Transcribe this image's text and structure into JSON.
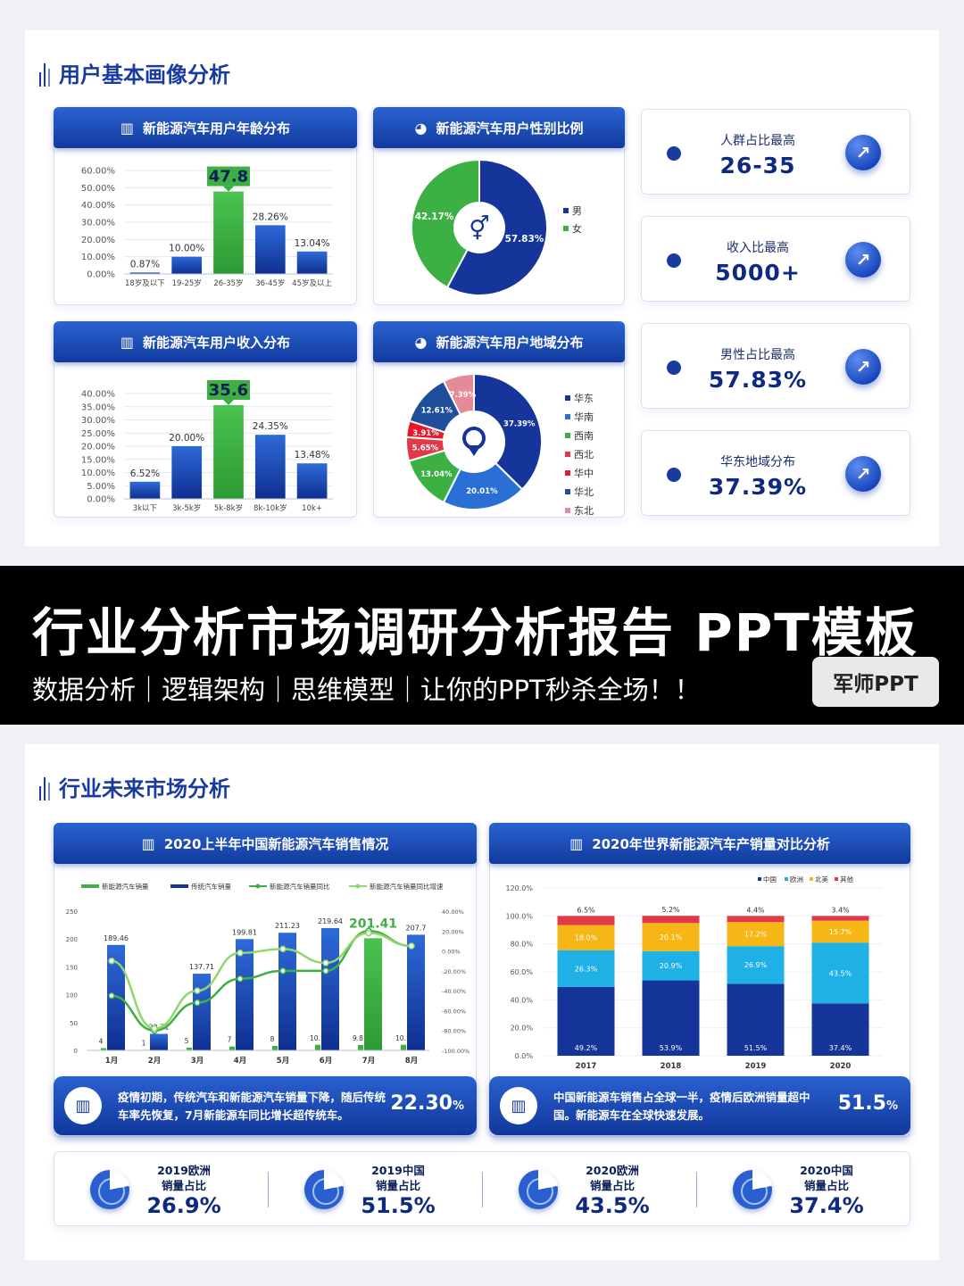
{
  "slide1": {
    "section_title": "用户基本画像分析",
    "age_chart": {
      "title": "新能源汽车用户年龄分布"
    },
    "gender_chart": {
      "title": "新能源汽车用户性别比例"
    },
    "income_chart": {
      "title": "新能源汽车用户收入分布"
    },
    "region_chart": {
      "title": "新能源汽车用户地域分布"
    },
    "stats": [
      {
        "label": "人群占比最高",
        "value": "26-35"
      },
      {
        "label": "收入比最高",
        "value": "5000+"
      },
      {
        "label": "男性占比最高",
        "value": "57.83%"
      },
      {
        "label": "华东地域分布",
        "value": "37.39%"
      }
    ]
  },
  "banner": {
    "title": "行业分析市场调研分析报告  PPT模板",
    "subtitle": "数据分析｜逻辑架构｜思维模型｜让你的PPT秒杀全场！！",
    "brand": "军师PPT"
  },
  "slide2": {
    "section_title": "行业未来市场分析",
    "sales_chart": {
      "title": "2020上半年中国新能源汽车销售情况"
    },
    "world_chart": {
      "title": "2020年世界新能源汽车产销量对比分析"
    },
    "notes": [
      {
        "text": "疫情初期，传统汽车和新能源汽车销量下降，随后传统车率先恢复，7月新能源车同比增长超传统车。",
        "value": "22.30",
        "unit": "%"
      },
      {
        "text": "中国新能源车销售占全球一半，疫情后欧洲销量超中国。新能源车在全球快速发展。",
        "value": "51.5",
        "unit": "%"
      }
    ],
    "shares": [
      {
        "label1": "2019欧洲",
        "label2": "销量占比",
        "value": "26.9%"
      },
      {
        "label1": "2019中国",
        "label2": "销量占比",
        "value": "51.5%"
      },
      {
        "label1": "2020欧洲",
        "label2": "销量占比",
        "value": "43.5%"
      },
      {
        "label1": "2020中国",
        "label2": "销量占比",
        "value": "37.4%"
      }
    ]
  },
  "colors": {
    "navy": "#1a3b9e",
    "blue": "#2a63d0",
    "green": "#3cb043",
    "red": "#e03a4a",
    "yellow": "#f6b616",
    "cyan": "#1fb0e6",
    "pink": "#e68a9a"
  },
  "chart_data": [
    {
      "type": "bar",
      "title": "新能源汽车用户年龄分布",
      "categories": [
        "18岁及以下",
        "19-25岁",
        "26-35岁",
        "36-45岁",
        "45岁及以上"
      ],
      "values": [
        0.87,
        10.0,
        47.8,
        28.26,
        13.04
      ],
      "value_labels": [
        "0.87%",
        "10.00%",
        "47.8",
        "28.26%",
        "13.04%"
      ],
      "y_ticks": [
        "0.00%",
        "10.00%",
        "20.00%",
        "30.00%",
        "40.00%",
        "50.00%",
        "60.00%"
      ],
      "ylim": [
        0,
        60
      ],
      "highlight_index": 2
    },
    {
      "type": "pie",
      "title": "新能源汽车用户性别比例",
      "labels": [
        "男",
        "女"
      ],
      "values": [
        57.83,
        42.17
      ],
      "value_labels": [
        "57.83%",
        "42.17%"
      ]
    },
    {
      "type": "bar",
      "title": "新能源汽车用户收入分布",
      "categories": [
        "3k以下",
        "3k-5k岁",
        "5k-8k岁",
        "8k-10k岁",
        "10k+"
      ],
      "values": [
        6.52,
        20.0,
        35.6,
        24.35,
        13.48
      ],
      "value_labels": [
        "6.52%",
        "20.00%",
        "35.6",
        "24.35%",
        "13.48%"
      ],
      "y_ticks": [
        "0.00%",
        "5.00%",
        "10.00%",
        "15.00%",
        "20.00%",
        "25.00%",
        "30.00%",
        "35.00%",
        "40.00%"
      ],
      "ylim": [
        0,
        40
      ],
      "highlight_index": 2
    },
    {
      "type": "pie",
      "title": "新能源汽车用户地域分布",
      "labels": [
        "华东",
        "华南",
        "西南",
        "西北",
        "华中",
        "华北",
        "东北"
      ],
      "values": [
        37.39,
        20.01,
        13.04,
        5.65,
        3.91,
        12.61,
        7.39
      ],
      "value_labels": [
        "37.39%",
        "20.01%",
        "13.04%",
        "5.65%",
        "3.91%",
        "12.61%",
        "7.39%"
      ]
    },
    {
      "type": "bar",
      "title": "2020上半年中国新能源汽车销售情况",
      "categories": [
        "1月",
        "2月",
        "3月",
        "4月",
        "5月",
        "6月",
        "7月",
        "8月"
      ],
      "series": [
        {
          "name": "新能源汽车销量",
          "values": [
            4,
            1,
            5,
            7,
            8,
            10,
            9.8,
            10
          ]
        },
        {
          "name": "传统汽车销量",
          "values": [
            189.46,
            29.71,
            137.71,
            199.81,
            211.23,
            219.64,
            null,
            207.7
          ]
        },
        {
          "name": "新能源汽车销量同比",
          "values": [
            -45,
            -80,
            -52,
            -28,
            -20,
            -20,
            20,
            5
          ]
        },
        {
          "name": "新能源汽车销量同比增速",
          "values": [
            -10,
            -78,
            -40,
            -2,
            2,
            -12,
            18,
            5
          ]
        }
      ],
      "green_bar": {
        "category": "7月",
        "value": 201.41,
        "label": "201.41"
      },
      "value_labels": [
        "189.46",
        "29.71",
        "137.71",
        "199.81",
        "211.23",
        "219.64",
        "201.41",
        "207.7"
      ],
      "small_labels": [
        "4",
        "1",
        "5",
        "7",
        "8",
        "10.",
        "9.8",
        "10."
      ],
      "y_ticks": [
        "0",
        "50",
        "100",
        "150",
        "200",
        "250"
      ],
      "y2_ticks": [
        "-100.00%",
        "-80.00%",
        "-60.00%",
        "-40.00%",
        "-20.00%",
        "0.00%",
        "20.00%",
        "40.00%"
      ],
      "ylim": [
        0,
        250
      ],
      "y2lim": [
        -100,
        40
      ]
    },
    {
      "type": "bar",
      "stacked": true,
      "title": "2020年世界新能源汽车产销量对比分析",
      "categories": [
        "2017",
        "2018",
        "2019",
        "2020"
      ],
      "series": [
        {
          "name": "中国",
          "values": [
            49.2,
            53.9,
            51.5,
            37.4
          ],
          "labels": [
            "49.2%",
            "53.9%",
            "51.5%",
            "37.4%"
          ]
        },
        {
          "name": "欧洲",
          "values": [
            26.3,
            20.9,
            26.9,
            43.5
          ],
          "labels": [
            "26.3%",
            "20.9%",
            "26.9%",
            "43.5%"
          ]
        },
        {
          "name": "北美",
          "values": [
            18.0,
            20.1,
            17.2,
            15.7
          ],
          "labels": [
            "18.0%",
            "20.1%",
            "17.2%",
            "15.7%"
          ]
        },
        {
          "name": "其他",
          "values": [
            6.5,
            5.2,
            4.4,
            3.4
          ],
          "labels": [
            "6.5%",
            "5.2%",
            "4.4%",
            "3.4%"
          ]
        }
      ],
      "y_ticks": [
        "0.0%",
        "20.0%",
        "40.0%",
        "60.0%",
        "80.0%",
        "100.0%",
        "120.0%"
      ],
      "ylim": [
        0,
        120
      ],
      "legend_position": "top-right"
    }
  ]
}
